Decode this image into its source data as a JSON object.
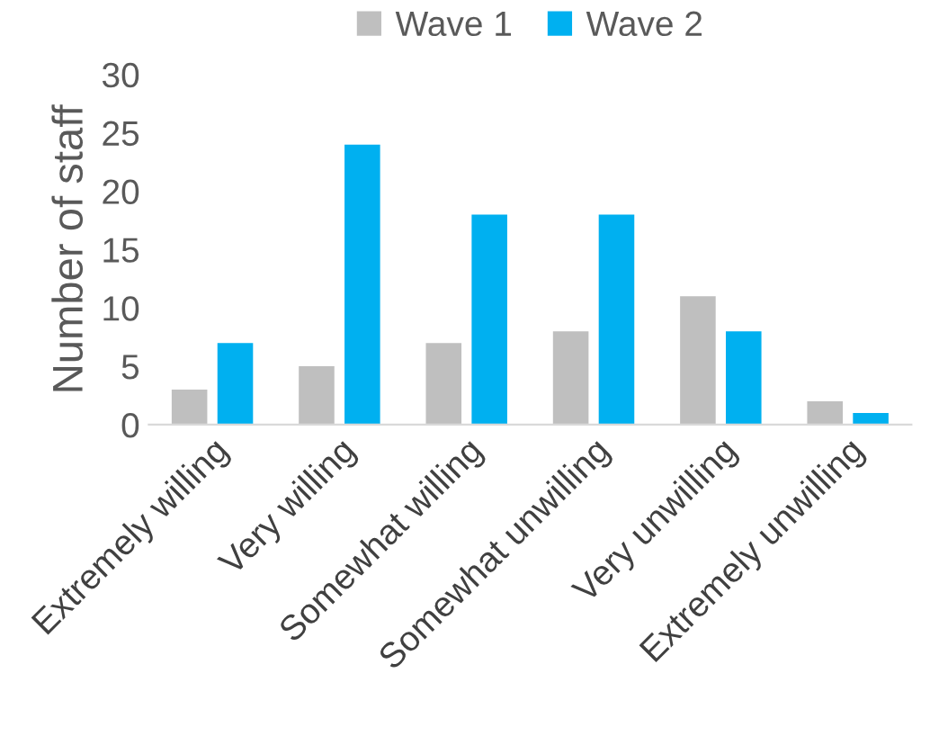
{
  "chart_data": {
    "type": "bar",
    "ylabel": "Number of staff",
    "categories": [
      "Extremely willing",
      "Very willing",
      "Somewhat willing",
      "Somewhat unwilling",
      "Very unwilling",
      "Extremely unwilling"
    ],
    "series": [
      {
        "name": "Wave 1",
        "color": "#bfbfbf",
        "values": [
          3,
          5,
          7,
          8,
          11,
          2
        ]
      },
      {
        "name": "Wave 2",
        "color": "#00b0f0",
        "values": [
          7,
          24,
          18,
          18,
          8,
          1
        ]
      }
    ],
    "ylim": [
      0,
      30
    ],
    "yticks": [
      0,
      5,
      10,
      15,
      20,
      25,
      30
    ],
    "grid": false,
    "legend": "top"
  }
}
